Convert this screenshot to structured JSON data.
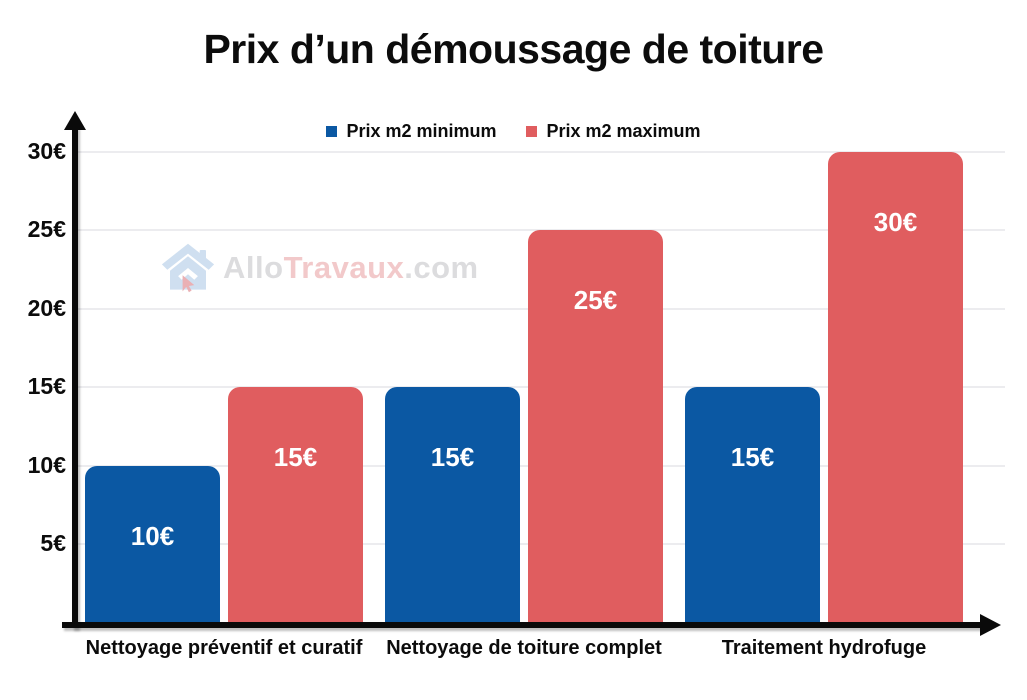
{
  "title": "Prix d’un démoussage de toiture",
  "legend": [
    {
      "label": "Prix m2 minimum",
      "color": "#0b58a3"
    },
    {
      "label": "Prix m2 maximum",
      "color": "#e05d5f"
    }
  ],
  "watermark": {
    "icon": "house-icon",
    "part_allo": "Allo",
    "part_travaux": "Travaux",
    "part_com": ".com",
    "icon_color": "#cfdff0",
    "cursor_color": "#eab0b4"
  },
  "chart_data": {
    "type": "bar",
    "title": "Prix d’un démoussage de toiture",
    "categories": [
      "Nettoyage préventif et curatif",
      "Nettoyage de toiture complet",
      "Traitement hydrofuge"
    ],
    "series": [
      {
        "name": "Prix m2 minimum",
        "color": "#0b58a3",
        "values": [
          10,
          15,
          15
        ],
        "data_labels": [
          "10€",
          "15€",
          "15€"
        ]
      },
      {
        "name": "Prix m2 maximum",
        "color": "#e05d5f",
        "values": [
          15,
          25,
          30
        ],
        "data_labels": [
          "15€",
          "25€",
          "30€"
        ]
      }
    ],
    "unit": "€",
    "xlabel": "",
    "ylabel": "",
    "ylim": [
      0,
      30
    ],
    "y_ticks": [
      5,
      10,
      15,
      20,
      25,
      30
    ],
    "y_tick_labels": [
      "5€",
      "10€",
      "15€",
      "20€",
      "25€",
      "30€"
    ],
    "grid": true,
    "legend_position": "top",
    "axis_color": "#0a0a0a",
    "gridline_color": "#ececef"
  }
}
